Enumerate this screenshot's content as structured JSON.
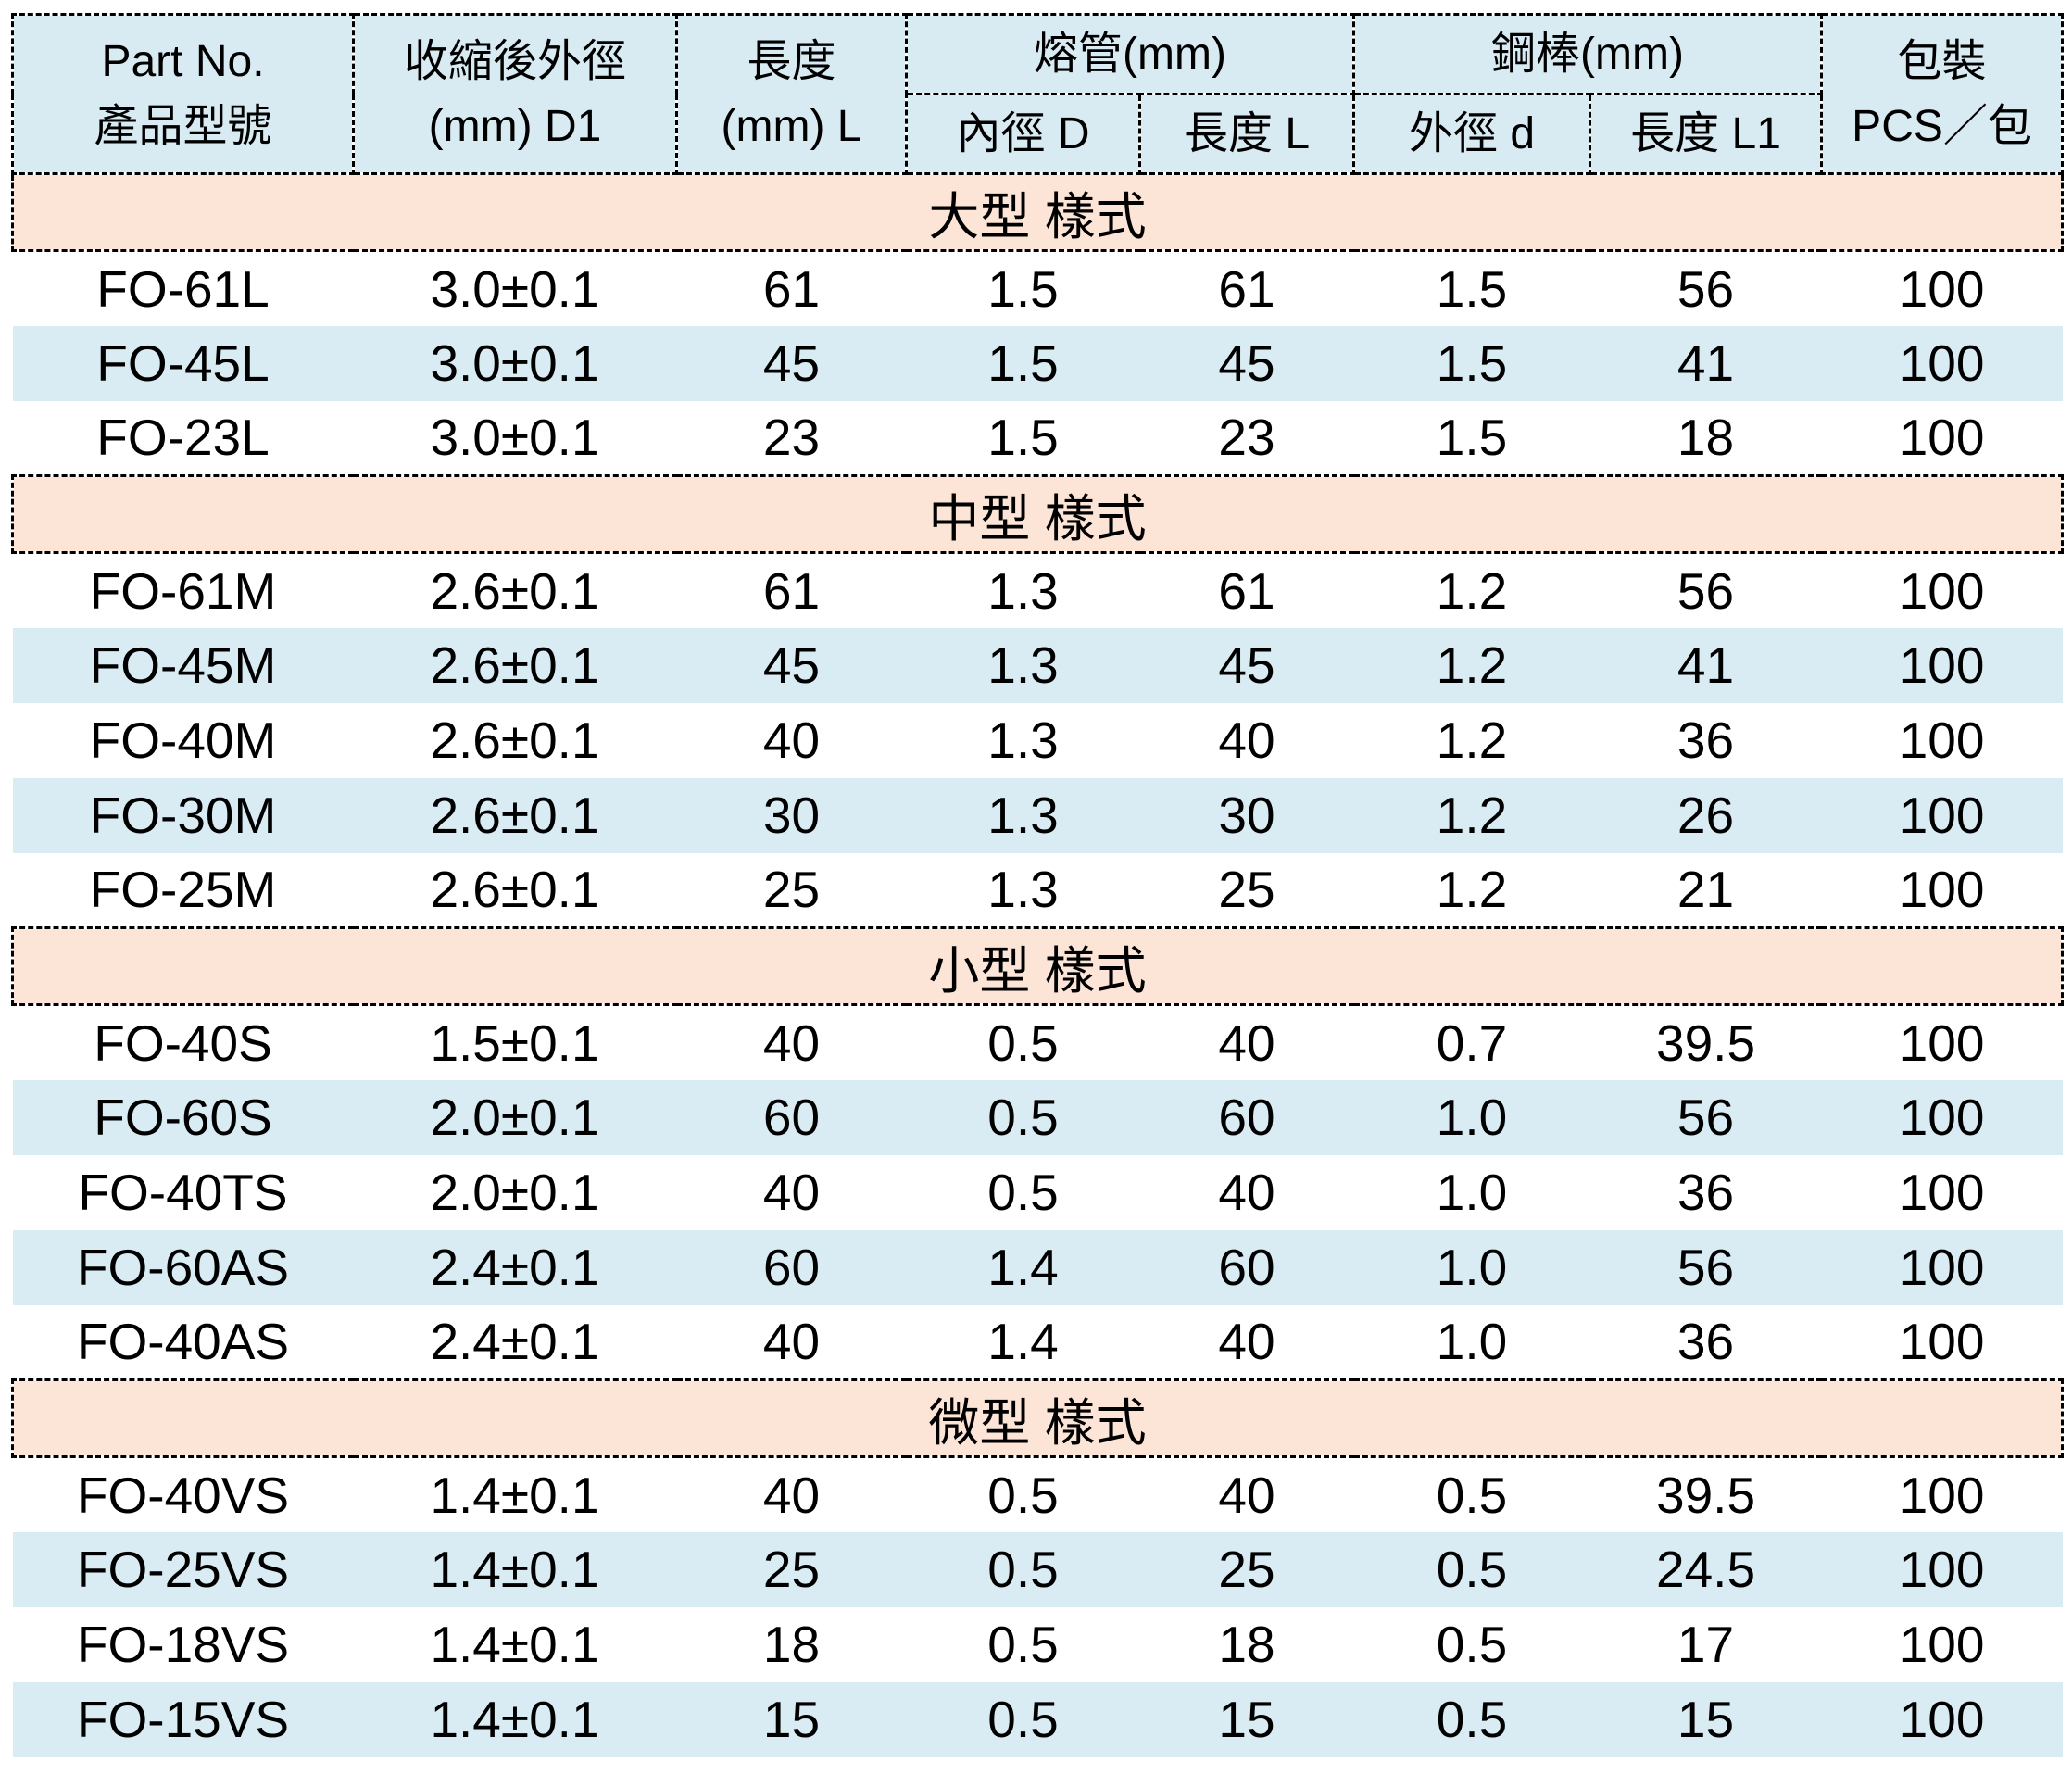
{
  "colors": {
    "header_bg": "#d8eaf2",
    "row_alt_bg": "#d9ecf3",
    "section_bg": "#fce5d6",
    "border": "#000000",
    "text": "#000000"
  },
  "header": {
    "part_no_line1": "Part No.",
    "part_no_line2": "產品型號",
    "shrink_od_line1": "收縮後外徑",
    "shrink_od_line2": "(mm) D1",
    "length_line1": "長度",
    "length_line2": "(mm) L",
    "fuse_group": "熔管(mm)",
    "fuse_inner_diameter": "內徑 D",
    "fuse_length": "長度 L",
    "rod_group": "鋼棒(mm)",
    "rod_outer_diameter": "外徑 d",
    "rod_length": "長度 L1",
    "pack_line1": "包裝",
    "pack_line2": "PCS／包"
  },
  "sections": [
    {
      "label": "大型 樣式",
      "rows": [
        [
          "FO-61L",
          "3.0±0.1",
          "61",
          "1.5",
          "61",
          "1.5",
          "56",
          "100"
        ],
        [
          "FO-45L",
          "3.0±0.1",
          "45",
          "1.5",
          "45",
          "1.5",
          "41",
          "100"
        ],
        [
          "FO-23L",
          "3.0±0.1",
          "23",
          "1.5",
          "23",
          "1.5",
          "18",
          "100"
        ]
      ]
    },
    {
      "label": "中型 樣式",
      "rows": [
        [
          "FO-61M",
          "2.6±0.1",
          "61",
          "1.3",
          "61",
          "1.2",
          "56",
          "100"
        ],
        [
          "FO-45M",
          "2.6±0.1",
          "45",
          "1.3",
          "45",
          "1.2",
          "41",
          "100"
        ],
        [
          "FO-40M",
          "2.6±0.1",
          "40",
          "1.3",
          "40",
          "1.2",
          "36",
          "100"
        ],
        [
          "FO-30M",
          "2.6±0.1",
          "30",
          "1.3",
          "30",
          "1.2",
          "26",
          "100"
        ],
        [
          "FO-25M",
          "2.6±0.1",
          "25",
          "1.3",
          "25",
          "1.2",
          "21",
          "100"
        ]
      ]
    },
    {
      "label": "小型 樣式",
      "rows": [
        [
          "FO-40S",
          "1.5±0.1",
          "40",
          "0.5",
          "40",
          "0.7",
          "39.5",
          "100"
        ],
        [
          "FO-60S",
          "2.0±0.1",
          "60",
          "0.5",
          "60",
          "1.0",
          "56",
          "100"
        ],
        [
          "FO-40TS",
          "2.0±0.1",
          "40",
          "0.5",
          "40",
          "1.0",
          "36",
          "100"
        ],
        [
          "FO-60AS",
          "2.4±0.1",
          "60",
          "1.4",
          "60",
          "1.0",
          "56",
          "100"
        ],
        [
          "FO-40AS",
          "2.4±0.1",
          "40",
          "1.4",
          "40",
          "1.0",
          "36",
          "100"
        ]
      ]
    },
    {
      "label": "微型 樣式",
      "rows": [
        [
          "FO-40VS",
          "1.4±0.1",
          "40",
          "0.5",
          "40",
          "0.5",
          "39.5",
          "100"
        ],
        [
          "FO-25VS",
          "1.4±0.1",
          "25",
          "0.5",
          "25",
          "0.5",
          "24.5",
          "100"
        ],
        [
          "FO-18VS",
          "1.4±0.1",
          "18",
          "0.5",
          "18",
          "0.5",
          "17",
          "100"
        ],
        [
          "FO-15VS",
          "1.4±0.1",
          "15",
          "0.5",
          "15",
          "0.5",
          "15",
          "100"
        ]
      ]
    }
  ]
}
